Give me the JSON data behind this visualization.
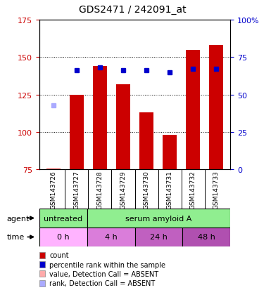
{
  "title": "GDS2471 / 242091_at",
  "samples": [
    "GSM143726",
    "GSM143727",
    "GSM143728",
    "GSM143729",
    "GSM143730",
    "GSM143731",
    "GSM143732",
    "GSM143733"
  ],
  "count_values": [
    76,
    125,
    144,
    132,
    113,
    98,
    155,
    158
  ],
  "rank_values": [
    null,
    66,
    68,
    66,
    66,
    65,
    67,
    67
  ],
  "absent_count": 76,
  "absent_rank_pct": 43,
  "absent_sample_idx": 0,
  "ylim_left": [
    75,
    175
  ],
  "ylim_right": [
    0,
    100
  ],
  "yticks_left": [
    75,
    100,
    125,
    150,
    175
  ],
  "yticks_right": [
    0,
    25,
    50,
    75,
    100
  ],
  "ytick_labels_left": [
    "75",
    "100",
    "125",
    "150",
    "175"
  ],
  "ytick_labels_right": [
    "0",
    "25",
    "50",
    "75",
    "100%"
  ],
  "color_count": "#cc0000",
  "color_rank": "#0000cc",
  "color_absent_value": "#ffaaaa",
  "color_absent_rank": "#aaaaff",
  "agent_row": [
    {
      "label": "untreated",
      "start": 0,
      "end": 2,
      "color": "#90ee90"
    },
    {
      "label": "serum amyloid A",
      "start": 2,
      "end": 8,
      "color": "#90ee90"
    }
  ],
  "time_row": [
    {
      "label": "0 h",
      "start": 0,
      "end": 2,
      "color": "#ffb3ff"
    },
    {
      "label": "4 h",
      "start": 2,
      "end": 4,
      "color": "#da7dda"
    },
    {
      "label": "24 h",
      "start": 4,
      "end": 6,
      "color": "#c060c0"
    },
    {
      "label": "48 h",
      "start": 6,
      "end": 8,
      "color": "#b050b0"
    }
  ],
  "bar_width": 0.6,
  "bg_color": "#ffffff",
  "plot_bg": "#ffffff",
  "sample_bg": "#d3d3d3",
  "legend_items": [
    {
      "color": "#cc0000",
      "label": "count"
    },
    {
      "color": "#0000cc",
      "label": "percentile rank within the sample"
    },
    {
      "color": "#ffaaaa",
      "label": "value, Detection Call = ABSENT"
    },
    {
      "color": "#aaaaff",
      "label": "rank, Detection Call = ABSENT"
    }
  ]
}
